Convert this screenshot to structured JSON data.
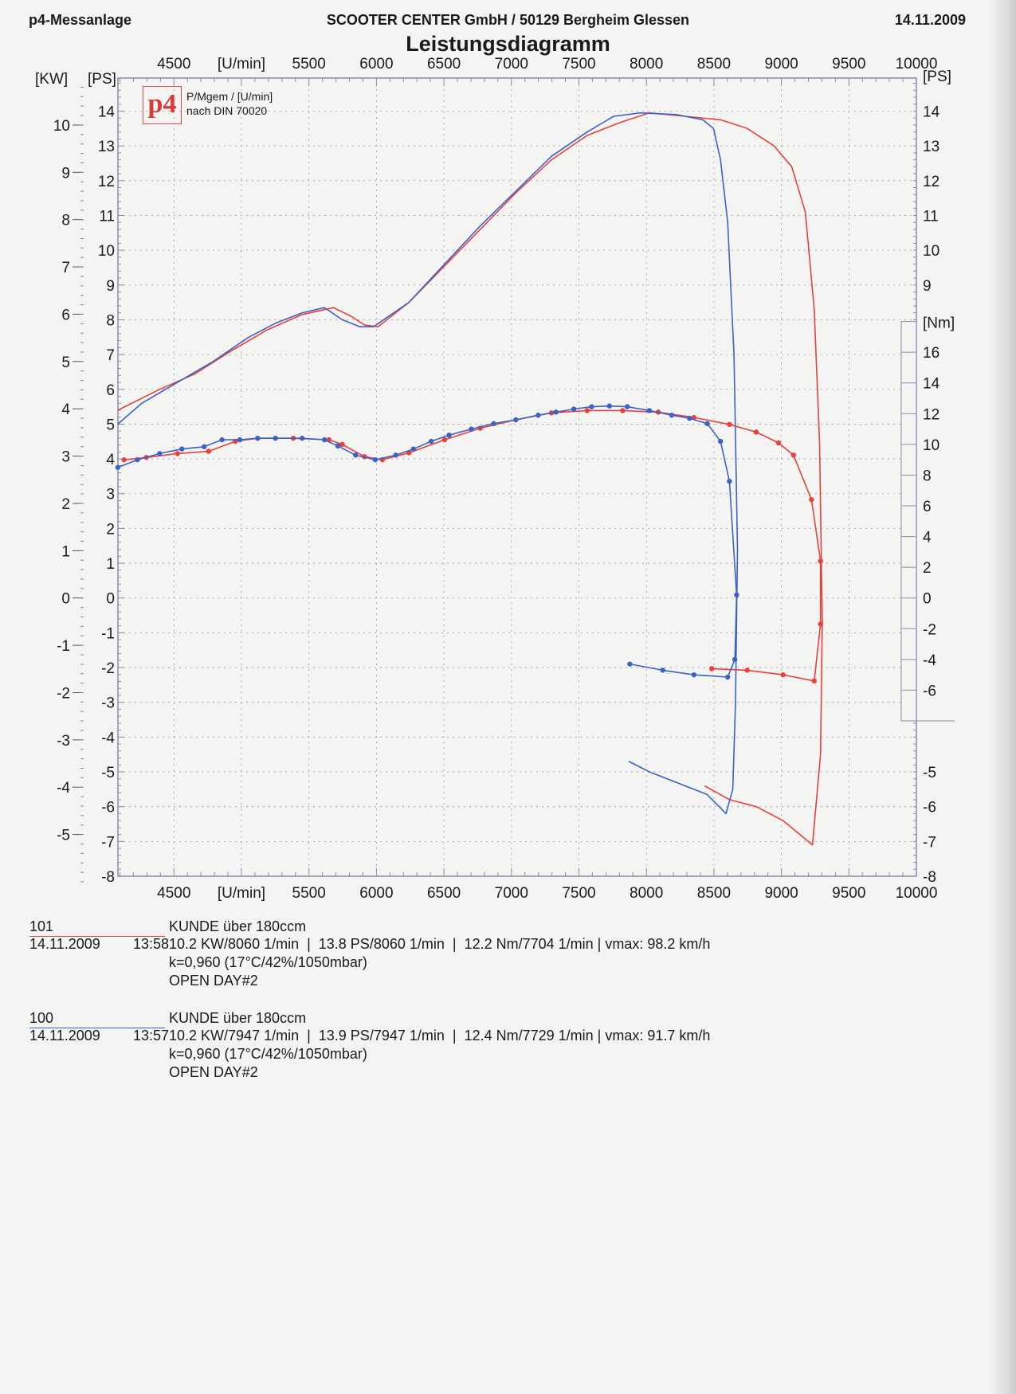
{
  "header": {
    "left": "p4-Messanlage",
    "center": "SCOOTER CENTER GmbH / 50129 Bergheim Glessen",
    "date": "14.11.2009",
    "title": "Leistungsdiagramm"
  },
  "legend": {
    "logo": "p4",
    "line1": "P/Mgem / [U/min]",
    "line2": "nach DIN 70020"
  },
  "colors": {
    "run101": "#e8403c",
    "run100": "#3b62c4",
    "grid": "#9a9a9a",
    "axis": "#8a8aa8"
  },
  "chart_data": {
    "type": "line",
    "title": "Leistungsdiagramm",
    "xlabel": "[U/min]",
    "xlim": [
      4085,
      10000
    ],
    "x_ticks": [
      "4500",
      "[U/min]",
      "5500",
      "6000",
      "6500",
      "7000",
      "7500",
      "8000",
      "8500",
      "9000",
      "9500",
      "10000"
    ],
    "x_tick_values": [
      4500,
      5000,
      5500,
      6000,
      6500,
      7000,
      7500,
      8000,
      8500,
      9000,
      9500,
      10000
    ],
    "ylabel_ps": "[PS]",
    "ylabel_kw": "[KW]",
    "ylabel_nm": "[Nm]",
    "ylim_ps": [
      -8,
      14.95
    ],
    "ps_ticks_left": [
      14,
      13,
      12,
      11,
      10,
      9,
      8,
      7,
      6,
      5,
      4,
      3,
      2,
      1,
      0,
      -1,
      -2,
      -3,
      -4,
      -5,
      -6,
      -7,
      -8
    ],
    "ps_ticks_right": [
      14,
      13,
      12,
      11,
      10,
      9,
      -5,
      -6,
      -7,
      -8
    ],
    "kw_ticks": [
      10,
      9,
      8,
      7,
      6,
      5,
      4,
      3,
      2,
      1,
      0,
      -1,
      -2,
      -3,
      -4,
      -5
    ],
    "nm_ticks": [
      16,
      14,
      12,
      10,
      8,
      6,
      4,
      2,
      0,
      -2,
      -4,
      -6
    ],
    "grid": true,
    "series": [
      {
        "name": "101 Leistung [PS]",
        "run": "101",
        "kind": "power",
        "color": "#e8403c",
        "x": [
          4084,
          4394,
          4658,
          4922,
          5186,
          5450,
          5681,
          5813,
          5912,
          6011,
          6241,
          6505,
          6769,
          7033,
          7297,
          7561,
          7824,
          8022,
          8286,
          8549,
          8747,
          8945,
          9077,
          9177,
          9243,
          9283,
          9303,
          9290,
          9230,
          9012,
          8814,
          8616,
          8431
        ],
        "y": [
          5.4,
          6.0,
          6.45,
          7.1,
          7.7,
          8.15,
          8.35,
          8.1,
          7.85,
          7.8,
          8.5,
          9.55,
          10.6,
          11.65,
          12.6,
          13.3,
          13.7,
          13.95,
          13.85,
          13.75,
          13.5,
          13.0,
          12.4,
          11.1,
          8.3,
          4.45,
          -0.7,
          -4.5,
          -7.1,
          -6.4,
          -6.0,
          -5.8,
          -5.4
        ]
      },
      {
        "name": "100 Leistung [PS]",
        "run": "100",
        "kind": "power",
        "color": "#3b62c4",
        "x": [
          4084,
          4262,
          4526,
          4790,
          5054,
          5252,
          5450,
          5615,
          5747,
          5879,
          5978,
          6241,
          6505,
          6769,
          7033,
          7297,
          7561,
          7758,
          7956,
          8220,
          8418,
          8497,
          8549,
          8602,
          8649,
          8675,
          8660,
          8640,
          8590,
          8450,
          8220,
          8022,
          7870
        ],
        "y": [
          5.0,
          5.6,
          6.2,
          6.8,
          7.5,
          7.9,
          8.2,
          8.35,
          8.0,
          7.8,
          7.8,
          8.5,
          9.6,
          10.7,
          11.7,
          12.7,
          13.4,
          13.85,
          13.95,
          13.9,
          13.75,
          13.5,
          12.6,
          10.8,
          7.0,
          1.4,
          -3.0,
          -5.5,
          -6.2,
          -5.65,
          -5.3,
          -5.0,
          -4.7
        ]
      },
      {
        "name": "101 Drehmoment [Nm]",
        "run": "101",
        "kind": "torque",
        "color": "#e8403c",
        "x": [
          4130,
          4295,
          4526,
          4757,
          4955,
          5120,
          5384,
          5648,
          5747,
          5912,
          6044,
          6241,
          6505,
          6769,
          7033,
          7297,
          7561,
          7824,
          8088,
          8352,
          8615,
          8813,
          8978,
          9090,
          9223,
          9290,
          9290,
          9243,
          9012,
          8747,
          8484
        ],
        "y": [
          9.0,
          9.15,
          9.4,
          9.55,
          10.2,
          10.4,
          10.4,
          10.3,
          10.0,
          9.2,
          9.0,
          9.45,
          10.3,
          11.05,
          11.6,
          12.05,
          12.2,
          12.2,
          12.1,
          11.75,
          11.3,
          10.8,
          10.1,
          9.3,
          6.4,
          2.4,
          -1.7,
          -5.4,
          -5.0,
          -4.7,
          -4.6
        ]
      },
      {
        "name": "100 Drehmoment [Nm]",
        "run": "100",
        "kind": "torque",
        "color": "#3b62c4",
        "x": [
          4084,
          4229,
          4394,
          4559,
          4724,
          4856,
          4988,
          5120,
          5252,
          5450,
          5615,
          5714,
          5846,
          5991,
          6143,
          6274,
          6406,
          6538,
          6703,
          6868,
          7033,
          7198,
          7330,
          7462,
          7594,
          7726,
          7858,
          8022,
          8187,
          8319,
          8451,
          8549,
          8615,
          8668,
          8655,
          8602,
          8352,
          8121,
          7877
        ],
        "y": [
          8.5,
          9.0,
          9.4,
          9.7,
          9.85,
          10.3,
          10.3,
          10.4,
          10.4,
          10.4,
          10.3,
          9.9,
          9.3,
          9.0,
          9.3,
          9.7,
          10.2,
          10.6,
          11.0,
          11.35,
          11.6,
          11.9,
          12.1,
          12.3,
          12.45,
          12.5,
          12.45,
          12.2,
          11.9,
          11.7,
          11.35,
          10.2,
          7.6,
          0.2,
          -4.0,
          -5.15,
          -5.0,
          -4.7,
          -4.3
        ]
      }
    ]
  },
  "runs": [
    {
      "id": "101",
      "color": "#e8403c",
      "name": "KUNDE über 180ccm",
      "date": "14.11.2009",
      "time": "13:58",
      "line1": "10.2 KW/8060 1/min  |  13.8 PS/8060 1/min  |  12.2 Nm/7704 1/min | vmax: 98.2 km/h",
      "line2": "k=0,960 (17°C/42%/1050mbar)",
      "line3": "OPEN DAY#2"
    },
    {
      "id": "100",
      "color": "#3b62c4",
      "name": "KUNDE über 180ccm",
      "date": "14.11.2009",
      "time": "13:57",
      "line1": "10.2 KW/7947 1/min  |  13.9 PS/7947 1/min  |  12.4 Nm/7729 1/min | vmax: 91.7 km/h",
      "line2": "k=0,960 (17°C/42%/1050mbar)",
      "line3": "OPEN DAY#2"
    }
  ]
}
